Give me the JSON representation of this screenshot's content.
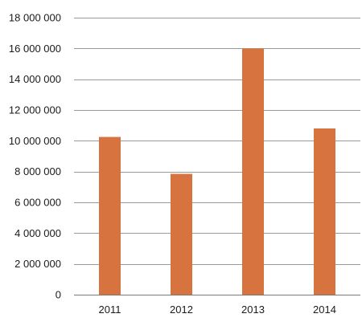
{
  "chart_data": {
    "type": "bar",
    "title": "",
    "xlabel": "",
    "ylabel": "",
    "categories": [
      "2011",
      "2012",
      "2013",
      "2014"
    ],
    "values": [
      10250000,
      7850000,
      16000000,
      10800000
    ],
    "ylim": [
      0,
      18000000
    ],
    "y_ticks": [
      0,
      2000000,
      4000000,
      6000000,
      8000000,
      10000000,
      12000000,
      14000000,
      16000000,
      18000000
    ],
    "y_tick_labels": [
      "0",
      "2 000 000",
      "4 000 000",
      "6 000 000",
      "8 000 000",
      "10 000 000",
      "12 000 000",
      "14 000 000",
      "16 000 000",
      "18 000 000"
    ],
    "grid": true,
    "legend": "none",
    "bar_color": "#d6733f"
  }
}
